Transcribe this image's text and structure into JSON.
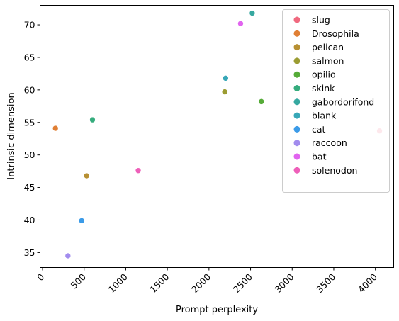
{
  "chart_data": {
    "type": "scatter",
    "title": "",
    "xlabel": "Prompt perplexity",
    "ylabel": "Intrinsic dimension",
    "xlim": [
      -30,
      4220
    ],
    "ylim": [
      32.7,
      73.0
    ],
    "grid": false,
    "legend_position": "top-right",
    "x_ticks": [
      0,
      500,
      1000,
      1500,
      2000,
      2500,
      3000,
      3500,
      4000
    ],
    "y_ticks": [
      35,
      40,
      45,
      50,
      55,
      60,
      65,
      70
    ],
    "x_tick_labels": [
      "0",
      "500",
      "1000",
      "1500",
      "2000",
      "2500",
      "3000",
      "3500",
      "4000"
    ],
    "y_tick_labels": [
      "35",
      "40",
      "45",
      "50",
      "55",
      "60",
      "65",
      "70"
    ],
    "series": [
      {
        "name": "slug",
        "color": "#f0697f",
        "points": [
          [
            4050,
            53.7
          ]
        ]
      },
      {
        "name": "Drosophila",
        "color": "#e07f34",
        "points": [
          [
            155,
            54.1
          ]
        ]
      },
      {
        "name": "pelican",
        "color": "#b79033",
        "points": [
          [
            530,
            46.8
          ]
        ]
      },
      {
        "name": "salmon",
        "color": "#9b9c32",
        "points": [
          [
            2190,
            59.7
          ]
        ]
      },
      {
        "name": "opilio",
        "color": "#55ab38",
        "points": [
          [
            2630,
            58.2
          ]
        ]
      },
      {
        "name": "skink",
        "color": "#35ac7d",
        "points": [
          [
            600,
            55.4
          ]
        ]
      },
      {
        "name": "gabordorifond",
        "color": "#36a8a0",
        "points": [
          [
            2520,
            71.8
          ]
        ]
      },
      {
        "name": "blank",
        "color": "#37a7b7",
        "points": [
          [
            2200,
            61.8
          ]
        ]
      },
      {
        "name": "cat",
        "color": "#3b9be8",
        "points": [
          [
            470,
            39.9
          ]
        ]
      },
      {
        "name": "raccoon",
        "color": "#a28cee",
        "points": [
          [
            305,
            34.5
          ]
        ]
      },
      {
        "name": "bat",
        "color": "#e164ef",
        "points": [
          [
            2380,
            70.2
          ]
        ]
      },
      {
        "name": "solenodon",
        "color": "#ee5fb9",
        "points": [
          [
            1150,
            47.6
          ]
        ]
      }
    ]
  }
}
